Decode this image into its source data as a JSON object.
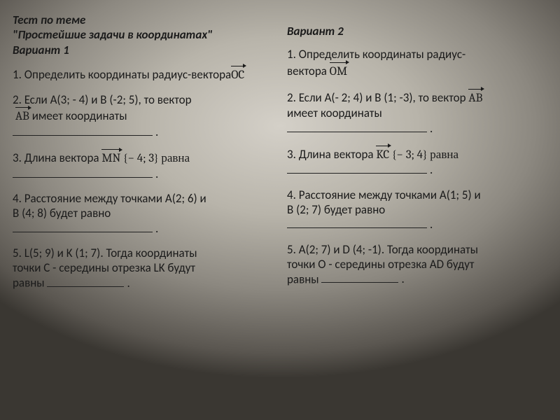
{
  "title_line1": "Тест по теме",
  "title_line2": " \"Простейшие задачи в координатах\"",
  "variant1": {
    "label": "Вариант 1",
    "q1_pre": "1. Определить координаты радиус-вектора",
    "q1_vec": "OC",
    "q2_pre": "2. Если  A(3; - 4) и B (-2; 5), то вектор",
    "q2_vec": "AB",
    "q2_post": "  имеет координаты",
    "q3_pre": "3. Длина вектора ",
    "q3_vec": "MN",
    "q3_set": " {− 4; 3}  равна",
    "q4_l1": "4. Расстояние между точками  A(2; 6) и",
    "q4_l2": "B (4; 8) будет равно",
    "q5_l1": "5. L(5; 9) и K (1; 7). Тогда координаты",
    "q5_l2": " точки   C - середины отрезка LK будут",
    "q5_l3": "равны  "
  },
  "variant2": {
    "label": "Вариант 2",
    "q1_l1": "1. Определить координаты радиус-",
    "q1_l2_pre": "вектора ",
    "q1_vec": "OM",
    "q2_pre": "2. Если  A(- 2; 4) и B (1; -3), то вектор ",
    "q2_vec": "AB",
    "q2_l2": "имеет координаты",
    "q3_pre": "3. Длина вектора ",
    "q3_vec": "KC",
    "q3_set": " {− 3; 4}  равна",
    "q4_l1": "4. Расстояние между точками  A(1; 5) и",
    "q4_l2": " B (2; 7) будет равно",
    "q5_l1": "5. A(2; 7) и D (4; -1). Тогда координаты",
    "q5_l2": "точки O - середины отрезка AD будут",
    "q5_l3": "равны   "
  }
}
